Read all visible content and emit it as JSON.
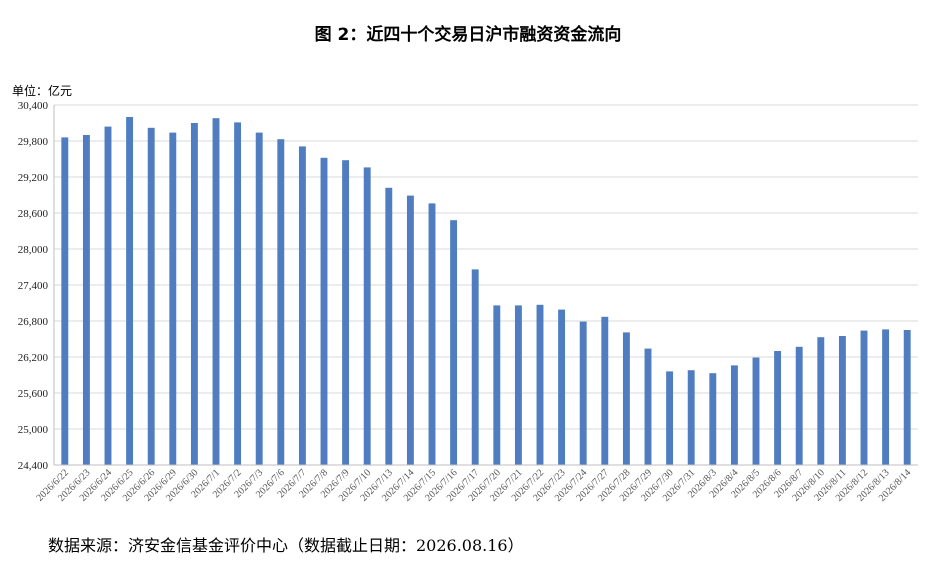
{
  "title": "图 2：近四十个交易日沪市融资资金流向",
  "unit_label": "单位：亿元",
  "source_note": "数据来源：济安金信基金评价中心（数据截止日期：2026.08.16）",
  "colors": {
    "bar": "#4F7DBF",
    "grid": "#D9D9D9",
    "axis": "#BFBFBF"
  },
  "chart_data": {
    "type": "bar",
    "categories": [
      "2026/6/22",
      "2026/6/23",
      "2026/6/24",
      "2026/6/25",
      "2026/6/26",
      "2026/6/29",
      "2026/6/30",
      "2026/7/1",
      "2026/7/2",
      "2026/7/3",
      "2026/7/6",
      "2026/7/7",
      "2026/7/8",
      "2026/7/9",
      "2026/7/10",
      "2026/7/13",
      "2026/7/14",
      "2026/7/15",
      "2026/7/16",
      "2026/7/17",
      "2026/7/20",
      "2026/7/21",
      "2026/7/22",
      "2026/7/23",
      "2026/7/24",
      "2026/7/27",
      "2026/7/28",
      "2026/7/29",
      "2026/7/30",
      "2026/7/31",
      "2026/8/3",
      "2026/8/4",
      "2026/8/5",
      "2026/8/6",
      "2026/8/7",
      "2026/8/10",
      "2026/8/11",
      "2026/8/12",
      "2026/8/13",
      "2026/8/14"
    ],
    "values": [
      29860,
      29900,
      30040,
      30200,
      30020,
      29940,
      30100,
      30180,
      30110,
      29940,
      29830,
      29710,
      29520,
      29480,
      29360,
      29020,
      28890,
      28760,
      28480,
      27660,
      27060,
      27060,
      27070,
      26990,
      26790,
      26870,
      26610,
      26340,
      25960,
      25980,
      25930,
      26060,
      26190,
      26300,
      26370,
      26530,
      26550,
      26640,
      26660,
      26650
    ],
    "xlabel": "",
    "ylabel": "",
    "ylim": [
      24400,
      30400
    ],
    "yticks": [
      24400,
      25000,
      25600,
      26200,
      26800,
      27400,
      28000,
      28600,
      29200,
      29800,
      30400
    ],
    "ytick_labels": [
      "24,400",
      "25,000",
      "25,600",
      "26,200",
      "26,800",
      "27,400",
      "28,000",
      "28,600",
      "29,200",
      "29,800",
      "30,400"
    ],
    "grid": true,
    "legend": "none"
  }
}
